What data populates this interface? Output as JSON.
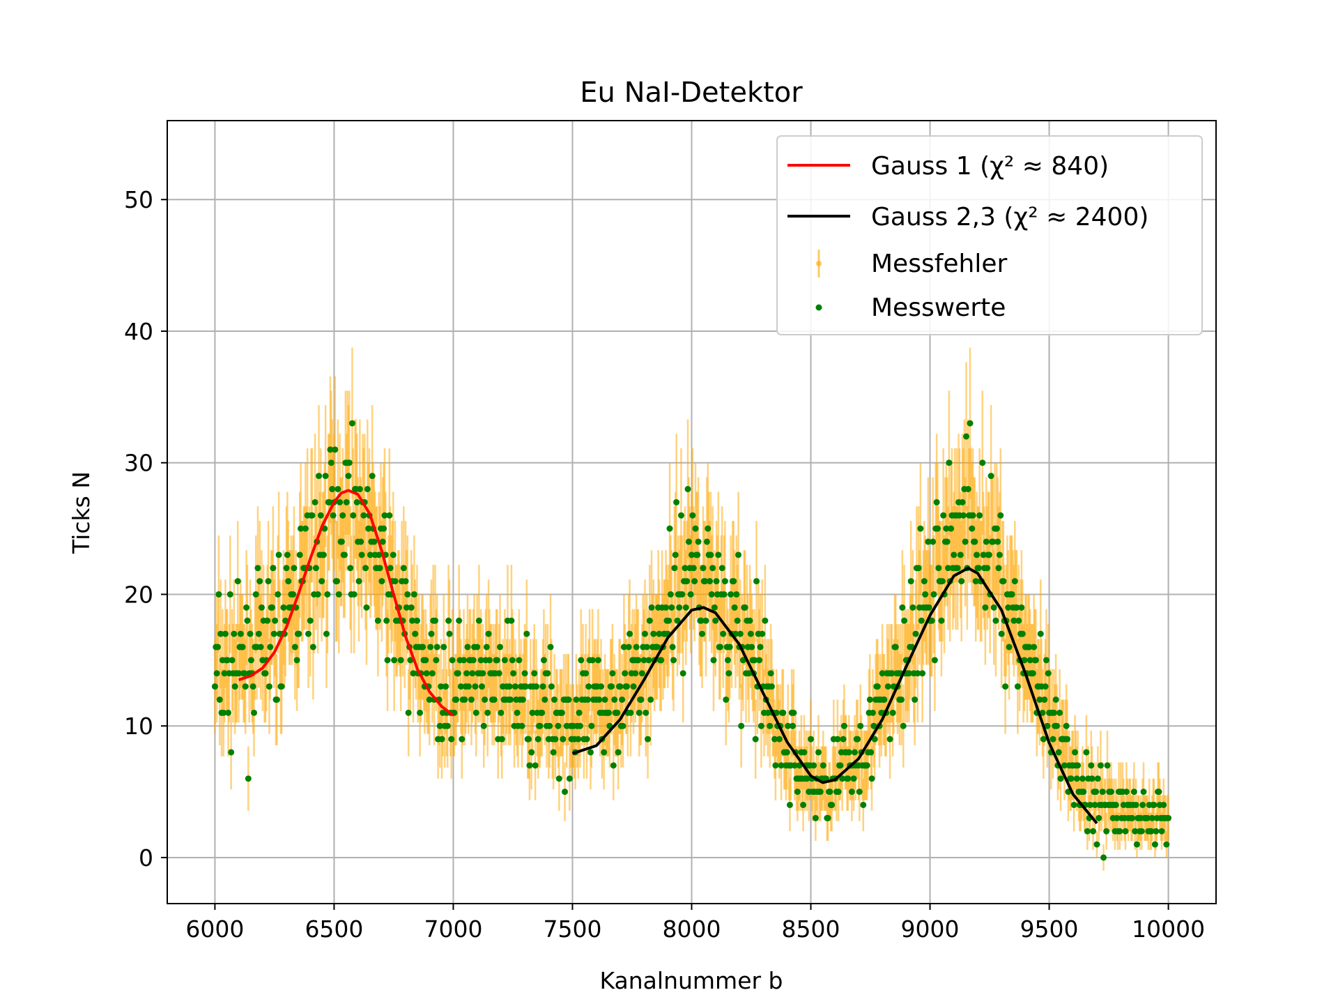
{
  "chart_data": {
    "type": "scatter",
    "title": "Eu NaI-Detektor",
    "xlabel": "Kanalnummer b",
    "ylabel": "Ticks N",
    "xlim": [
      5800,
      10200
    ],
    "ylim": [
      -3.5,
      56
    ],
    "grid": true,
    "legend_position": "top-right",
    "x_ticks": [
      6000,
      6500,
      7000,
      7500,
      8000,
      8500,
      9000,
      9500,
      10000
    ],
    "y_ticks": [
      0,
      10,
      20,
      30,
      40,
      50
    ],
    "x_tick_labels": [
      "6000",
      "6500",
      "7000",
      "7500",
      "8000",
      "8500",
      "9000",
      "9500",
      "10000"
    ],
    "y_tick_labels": [
      "0",
      "10",
      "20",
      "30",
      "40",
      "50"
    ],
    "colors": {
      "gauss1": "#ff0000",
      "gauss23": "#000000",
      "errorbar": "#ffa500",
      "points": "#008000"
    },
    "legend": [
      {
        "key": "gauss1",
        "label": "Gauss 1 (χ² ≈ 840)"
      },
      {
        "key": "gauss23",
        "label": "Gauss 2,3 (χ² ≈ 2400)"
      },
      {
        "key": "errorbar",
        "label": "Messfehler"
      },
      {
        "key": "points",
        "label": "Messwerte"
      }
    ],
    "series": [
      {
        "name": "Messwerte",
        "errorbar": "sqrt(N)",
        "x_range": [
          6000,
          10000
        ],
        "sample_x": [
          6000,
          6100,
          6200,
          6300,
          6400,
          6500,
          6560,
          6600,
          6700,
          6800,
          6900,
          7000,
          7200,
          7400,
          7500,
          7600,
          7800,
          7900,
          8000,
          8050,
          8100,
          8200,
          8300,
          8400,
          8500,
          8550,
          8600,
          8700,
          8800,
          8900,
          9000,
          9100,
          9160,
          9200,
          9300,
          9400,
          9500,
          9600,
          9700,
          9800,
          9900,
          10000
        ],
        "sample_mean_y": [
          14,
          14.5,
          16,
          18,
          22,
          26,
          27.5,
          26,
          22,
          17,
          14,
          13,
          13,
          11.5,
          10,
          11,
          14,
          19,
          23,
          22,
          20,
          17,
          13,
          8,
          6,
          5.5,
          6,
          8,
          11,
          15,
          20,
          25,
          26,
          25,
          21,
          16,
          10,
          6,
          4.5,
          3.5,
          3,
          3
        ]
      },
      {
        "name": "Gauss 1",
        "x": [
          6100,
          6150,
          6200,
          6250,
          6300,
          6350,
          6400,
          6450,
          6500,
          6530,
          6560,
          6600,
          6650,
          6700,
          6750,
          6800,
          6850,
          6900,
          6950,
          7000
        ],
        "y": [
          13.5,
          13.8,
          14.4,
          15.6,
          17.5,
          20.0,
          22.7,
          25.2,
          27.0,
          27.7,
          27.9,
          27.6,
          26.1,
          23.3,
          20.0,
          16.8,
          14.3,
          12.6,
          11.5,
          10.8
        ]
      },
      {
        "name": "Gauss 2,3",
        "x": [
          7500,
          7600,
          7700,
          7800,
          7900,
          8000,
          8050,
          8100,
          8200,
          8300,
          8400,
          8500,
          8550,
          8600,
          8700,
          8800,
          8900,
          9000,
          9100,
          9160,
          9200,
          9300,
          9400,
          9500,
          9600,
          9700
        ],
        "y": [
          7.9,
          8.5,
          10.5,
          13.5,
          16.7,
          18.8,
          19.0,
          18.6,
          16.2,
          12.5,
          8.8,
          6.2,
          5.7,
          5.9,
          7.5,
          10.5,
          14.5,
          18.4,
          21.4,
          22.0,
          21.6,
          18.8,
          14.0,
          8.7,
          4.8,
          2.6
        ]
      }
    ]
  }
}
